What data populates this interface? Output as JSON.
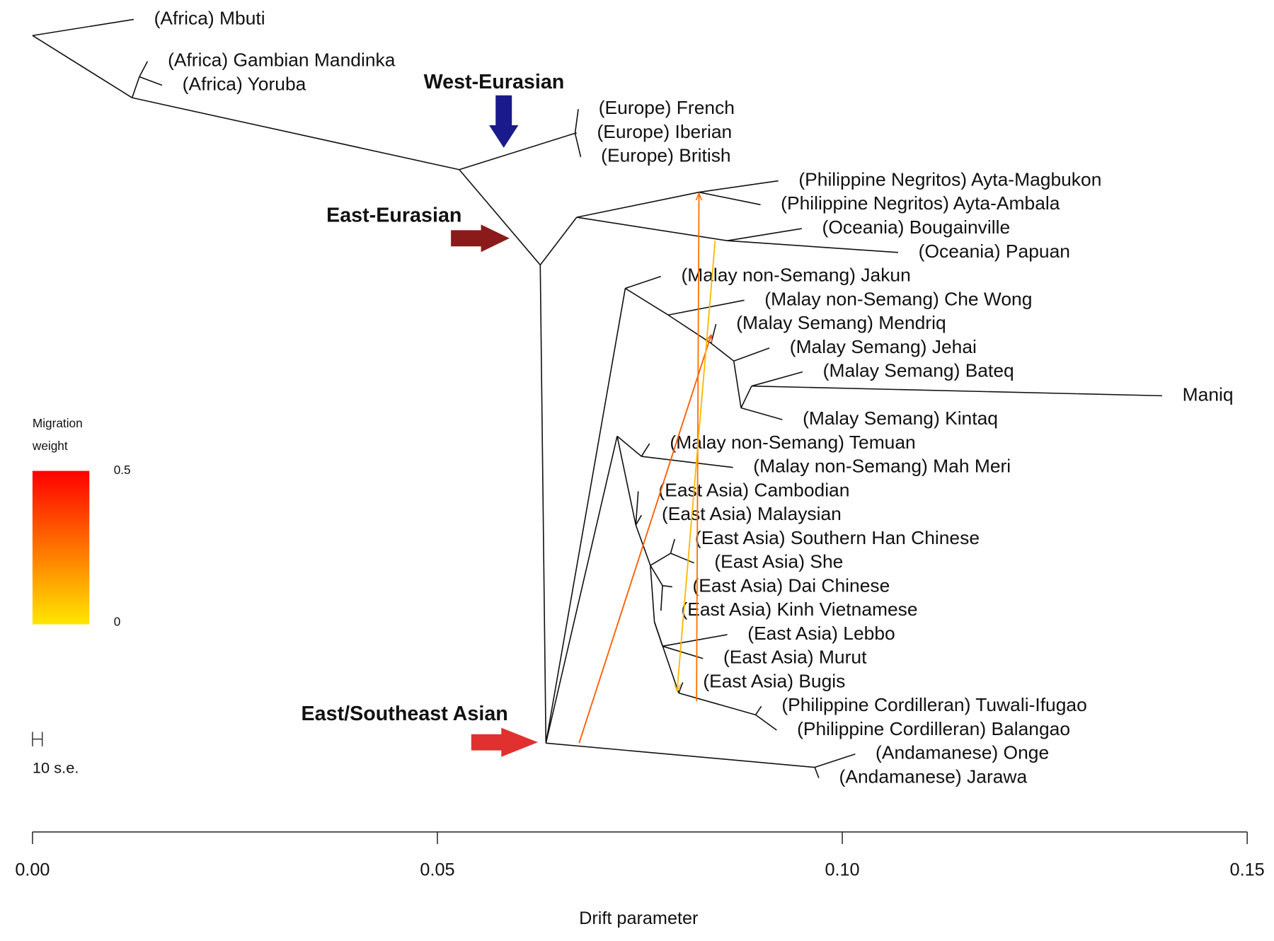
{
  "chart_data": {
    "type": "tree",
    "xlabel": "Drift parameter",
    "xlim": [
      0,
      0.15
    ],
    "xticks": [
      {
        "value": 0,
        "label": "0.00"
      },
      0.05,
      {
        "value": 0.1,
        "label": "0.10"
      },
      0.15
    ],
    "annotations": [
      {
        "text": "West-Eurasian",
        "color": "#1a1a8c"
      },
      {
        "text": "East-Eurasian",
        "color": "#8b1a1a"
      },
      {
        "text": "East/Southeast Asian",
        "color": "#e03030"
      }
    ],
    "scale_bar_label": "10 s.e.",
    "migration_legend": {
      "title": [
        "Migration",
        "weight"
      ],
      "ticks": [
        0,
        0.5
      ],
      "colors": [
        "#ffe600",
        "#ff0000"
      ]
    },
    "migrations": [
      {
        "from_x": 0.0675,
        "to_x": 0.0838,
        "weight": 0.3
      },
      {
        "from_x": 0.082,
        "to_x": 0.0823,
        "weight": 0.25
      },
      {
        "from_x": 0.0843,
        "to_x": 0.0796,
        "weight": 0.1
      }
    ],
    "tree": {
      "x": 0,
      "children": [
        {
          "label": "(Africa) Mbuti",
          "x": 0.0125
        },
        {
          "x": 0.0123,
          "children": [
            {
              "x": 0.0132,
              "children": [
                {
                  "label": "(Africa) Gambian Mandinka",
                  "x": 0.0142
                },
                {
                  "label": "(Africa) Yoruba",
                  "x": 0.016
                }
              ]
            },
            {
              "x": 0.0527,
              "children": [
                {
                  "x": 0.067,
                  "children": [
                    {
                      "label": "(Europe) French",
                      "x": 0.0674
                    },
                    {
                      "label": "(Europe) Iberian",
                      "x": 0.0672
                    },
                    {
                      "label": "(Europe) British",
                      "x": 0.0677
                    }
                  ]
                },
                {
                  "x": 0.0627,
                  "children": [
                    {
                      "x": 0.0672,
                      "children": [
                        {
                          "x": 0.0823,
                          "children": [
                            {
                              "label": "(Philippine Negritos) Ayta-Magbukon",
                              "x": 0.0921
                            },
                            {
                              "label": "(Philippine Negritos) Ayta-Ambala",
                              "x": 0.0899
                            }
                          ]
                        },
                        {
                          "x": 0.0858,
                          "children": [
                            {
                              "label": "(Oceania) Bougainville",
                              "x": 0.095
                            },
                            {
                              "label": "(Oceania) Papuan",
                              "x": 0.1069
                            }
                          ]
                        }
                      ]
                    },
                    {
                      "x": 0.0634,
                      "children": [
                        {
                          "x": 0.0732,
                          "children": [
                            {
                              "label": "(Malay non-Semang) Jakun",
                              "x": 0.0776
                            },
                            {
                              "x": 0.0785,
                              "children": [
                                {
                                  "label": "(Malay non-Semang) Che Wong",
                                  "x": 0.0879
                                },
                                {
                                  "x": 0.0838,
                                  "children": [
                                    {
                                      "label": "(Malay Semang) Mendriq",
                                      "x": 0.0844
                                    },
                                    {
                                      "x": 0.0866,
                                      "children": [
                                        {
                                          "label": "(Malay Semang) Jehai",
                                          "x": 0.091
                                        },
                                        {
                                          "x": 0.0875,
                                          "children": [
                                            {
                                              "x": 0.0888,
                                              "children": [
                                                {
                                                  "label": "(Malay Semang) Bateq",
                                                  "x": 0.0951
                                                },
                                                {
                                                  "label": "Maniq",
                                                  "x": 0.1395
                                                }
                                              ]
                                            },
                                            {
                                              "label": "(Malay Semang) Kintaq",
                                              "x": 0.0926
                                            }
                                          ]
                                        }
                                      ]
                                    }
                                  ]
                                }
                              ]
                            }
                          ]
                        },
                        {
                          "x": 0.0722,
                          "children": [
                            {
                              "x": 0.0752,
                              "children": [
                                {
                                  "label": "(Malay non-Semang) Temuan",
                                  "x": 0.0762
                                },
                                {
                                  "label": "(Malay non-Semang) Mah Meri",
                                  "x": 0.0865
                                }
                              ]
                            },
                            {
                              "x": 0.0745,
                              "children": [
                                {
                                  "label": "(East Asia) Cambodian",
                                  "x": 0.0748
                                },
                                {
                                  "label": "(East Asia) Malaysian",
                                  "x": 0.0752
                                },
                                {
                                  "x": 0.0763,
                                  "children": [
                                    {
                                      "x": 0.0788,
                                      "children": [
                                        {
                                          "label": "(East Asia) Southern Han Chinese",
                                          "x": 0.0793
                                        },
                                        {
                                          "label": "(East Asia) She",
                                          "x": 0.0817
                                        }
                                      ]
                                    },
                                    {
                                      "x": 0.0778,
                                      "children": [
                                        {
                                          "label": "(East Asia) Dai Chinese",
                                          "x": 0.079
                                        },
                                        {
                                          "label": "(East Asia) Kinh Vietnamese",
                                          "x": 0.0776
                                        }
                                      ]
                                    },
                                    {
                                      "x": 0.0768,
                                      "children": [
                                        {
                                          "x": 0.0778,
                                          "children": [
                                            {
                                              "label": "(East Asia) Lebbo",
                                              "x": 0.0858
                                            },
                                            {
                                              "label": "(East Asia) Murut",
                                              "x": 0.0828
                                            }
                                          ]
                                        },
                                        {
                                          "x": 0.0798,
                                          "children": [
                                            {
                                              "label": "(East Asia) Bugis",
                                              "x": 0.0803
                                            },
                                            {
                                              "x": 0.0893,
                                              "children": [
                                                {
                                                  "label": "(Philippine Cordilleran) Tuwali-Ifugao",
                                                  "x": 0.09
                                                },
                                                {
                                                  "label": "(Philippine Cordilleran) Balangao",
                                                  "x": 0.0919
                                                }
                                              ]
                                            }
                                          ]
                                        }
                                      ]
                                    }
                                  ]
                                }
                              ]
                            }
                          ]
                        },
                        {
                          "x": 0.0966,
                          "children": [
                            {
                              "label": "(Andamanese) Onge",
                              "x": 0.1016
                            },
                            {
                              "label": "(Andamanese) Jarawa",
                              "x": 0.0971
                            }
                          ]
                        }
                      ]
                    }
                  ]
                }
              ]
            }
          ]
        }
      ]
    }
  }
}
